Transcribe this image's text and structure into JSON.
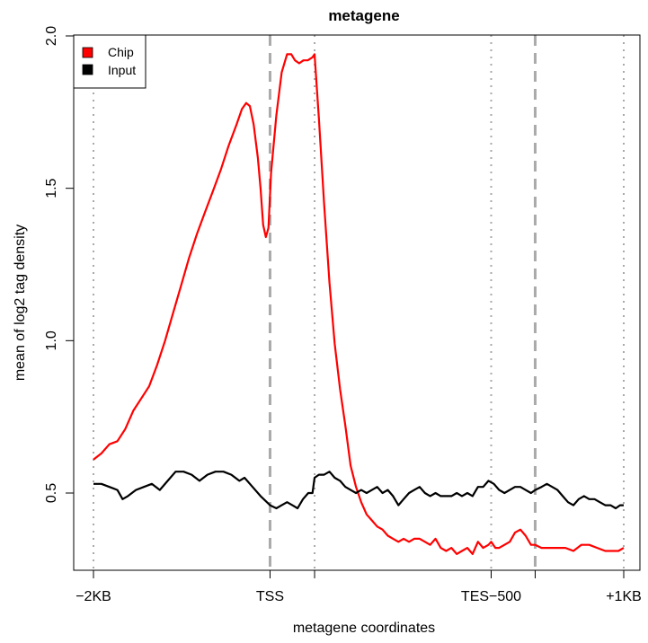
{
  "chart_data": {
    "type": "line",
    "title": "metagene",
    "xlabel": "metagene coordinates",
    "ylabel": "mean of log2 tag density",
    "xlim": [
      0,
      100
    ],
    "ylim": [
      0.25,
      2.0
    ],
    "yticks": [
      0.5,
      1.0,
      1.5,
      2.0
    ],
    "ytick_labels": [
      "0.5",
      "1.0",
      "1.5",
      "2.0"
    ],
    "xticks": [
      {
        "x": 0,
        "label": "−2KB"
      },
      {
        "x": 33.3,
        "label": "TSS"
      },
      {
        "x": 41.7,
        "label": ""
      },
      {
        "x": 75,
        "label": "TES−500"
      },
      {
        "x": 83.3,
        "label": ""
      },
      {
        "x": 100,
        "label": "+1KB"
      }
    ],
    "vlines": [
      {
        "x": 0,
        "style": "dotted"
      },
      {
        "x": 33.3,
        "style": "dashed"
      },
      {
        "x": 41.7,
        "style": "dotted"
      },
      {
        "x": 75,
        "style": "dotted"
      },
      {
        "x": 83.3,
        "style": "dashed"
      },
      {
        "x": 100,
        "style": "dotted"
      }
    ],
    "grid": false,
    "legend_position": "top-left",
    "series": [
      {
        "name": "Chip",
        "color": "#ff0000",
        "points": [
          [
            0,
            0.61
          ],
          [
            1.5,
            0.63
          ],
          [
            3,
            0.66
          ],
          [
            4.5,
            0.67
          ],
          [
            6,
            0.71
          ],
          [
            7.5,
            0.77
          ],
          [
            9,
            0.81
          ],
          [
            10.5,
            0.85
          ],
          [
            12,
            0.92
          ],
          [
            13.5,
            1.0
          ],
          [
            15,
            1.09
          ],
          [
            16.5,
            1.18
          ],
          [
            18,
            1.27
          ],
          [
            19.5,
            1.35
          ],
          [
            21,
            1.42
          ],
          [
            22.5,
            1.49
          ],
          [
            24,
            1.56
          ],
          [
            25.5,
            1.64
          ],
          [
            27,
            1.71
          ],
          [
            28,
            1.76
          ],
          [
            28.8,
            1.78
          ],
          [
            29.5,
            1.77
          ],
          [
            30.2,
            1.71
          ],
          [
            31,
            1.6
          ],
          [
            31.5,
            1.5
          ],
          [
            32,
            1.38
          ],
          [
            32.5,
            1.34
          ],
          [
            33,
            1.37
          ],
          [
            33.5,
            1.55
          ],
          [
            34.5,
            1.74
          ],
          [
            35.5,
            1.88
          ],
          [
            36.5,
            1.94
          ],
          [
            37.3,
            1.94
          ],
          [
            38,
            1.92
          ],
          [
            38.8,
            1.91
          ],
          [
            39.6,
            1.92
          ],
          [
            40.4,
            1.92
          ],
          [
            41.3,
            1.93
          ],
          [
            41.7,
            1.94
          ],
          [
            42.5,
            1.73
          ],
          [
            43.5,
            1.45
          ],
          [
            44.5,
            1.19
          ],
          [
            45.5,
            0.99
          ],
          [
            46.5,
            0.84
          ],
          [
            47.5,
            0.72
          ],
          [
            48.5,
            0.59
          ],
          [
            49.5,
            0.52
          ],
          [
            50.5,
            0.47
          ],
          [
            51.5,
            0.43
          ],
          [
            52.5,
            0.41
          ],
          [
            53.5,
            0.39
          ],
          [
            54.5,
            0.38
          ],
          [
            55.5,
            0.36
          ],
          [
            56.5,
            0.35
          ],
          [
            57.5,
            0.34
          ],
          [
            58.5,
            0.35
          ],
          [
            59.5,
            0.34
          ],
          [
            60.5,
            0.35
          ],
          [
            61.5,
            0.35
          ],
          [
            62.5,
            0.34
          ],
          [
            63.5,
            0.33
          ],
          [
            64.5,
            0.35
          ],
          [
            65.5,
            0.32
          ],
          [
            66.5,
            0.31
          ],
          [
            67.5,
            0.32
          ],
          [
            68.5,
            0.3
          ],
          [
            69.5,
            0.31
          ],
          [
            70.5,
            0.32
          ],
          [
            71.5,
            0.3
          ],
          [
            72.5,
            0.34
          ],
          [
            73.5,
            0.32
          ],
          [
            74.5,
            0.33
          ],
          [
            75,
            0.34
          ],
          [
            75.8,
            0.32
          ],
          [
            76.5,
            0.32
          ],
          [
            77.5,
            0.33
          ],
          [
            78.5,
            0.34
          ],
          [
            79.5,
            0.37
          ],
          [
            80.5,
            0.38
          ],
          [
            81.5,
            0.36
          ],
          [
            82.5,
            0.33
          ],
          [
            83.3,
            0.33
          ],
          [
            84.5,
            0.32
          ],
          [
            86,
            0.32
          ],
          [
            87.5,
            0.32
          ],
          [
            89,
            0.32
          ],
          [
            90.5,
            0.31
          ],
          [
            92,
            0.33
          ],
          [
            93.5,
            0.33
          ],
          [
            95,
            0.32
          ],
          [
            96.5,
            0.31
          ],
          [
            98,
            0.31
          ],
          [
            99,
            0.31
          ],
          [
            100,
            0.32
          ]
        ]
      },
      {
        "name": "Input",
        "color": "#000000",
        "points": [
          [
            0,
            0.53
          ],
          [
            1.5,
            0.53
          ],
          [
            3,
            0.52
          ],
          [
            4.5,
            0.51
          ],
          [
            5.5,
            0.48
          ],
          [
            6.5,
            0.49
          ],
          [
            8,
            0.51
          ],
          [
            9.5,
            0.52
          ],
          [
            11,
            0.53
          ],
          [
            12.5,
            0.51
          ],
          [
            14,
            0.54
          ],
          [
            15.5,
            0.57
          ],
          [
            17,
            0.57
          ],
          [
            18.5,
            0.56
          ],
          [
            20,
            0.54
          ],
          [
            21.5,
            0.56
          ],
          [
            23,
            0.57
          ],
          [
            24.5,
            0.57
          ],
          [
            26,
            0.56
          ],
          [
            27.5,
            0.54
          ],
          [
            28.5,
            0.55
          ],
          [
            30,
            0.52
          ],
          [
            31.5,
            0.49
          ],
          [
            33.3,
            0.46
          ],
          [
            34.5,
            0.45
          ],
          [
            35.5,
            0.46
          ],
          [
            36.5,
            0.47
          ],
          [
            37.5,
            0.46
          ],
          [
            38.5,
            0.45
          ],
          [
            39.5,
            0.48
          ],
          [
            40.5,
            0.5
          ],
          [
            41.3,
            0.5
          ],
          [
            41.7,
            0.55
          ],
          [
            42.5,
            0.56
          ],
          [
            43.5,
            0.56
          ],
          [
            44.5,
            0.57
          ],
          [
            45.5,
            0.55
          ],
          [
            46.5,
            0.54
          ],
          [
            47.5,
            0.52
          ],
          [
            48.5,
            0.51
          ],
          [
            49.5,
            0.5
          ],
          [
            50.5,
            0.51
          ],
          [
            51.5,
            0.5
          ],
          [
            52.5,
            0.51
          ],
          [
            53.5,
            0.52
          ],
          [
            54.5,
            0.5
          ],
          [
            55.5,
            0.51
          ],
          [
            56.5,
            0.49
          ],
          [
            57.5,
            0.46
          ],
          [
            58.5,
            0.48
          ],
          [
            59.5,
            0.5
          ],
          [
            60.5,
            0.51
          ],
          [
            61.5,
            0.52
          ],
          [
            62.5,
            0.5
          ],
          [
            63.5,
            0.49
          ],
          [
            64.5,
            0.5
          ],
          [
            65.5,
            0.49
          ],
          [
            66.5,
            0.49
          ],
          [
            67.5,
            0.49
          ],
          [
            68.5,
            0.5
          ],
          [
            69.5,
            0.49
          ],
          [
            70.5,
            0.5
          ],
          [
            71.5,
            0.49
          ],
          [
            72.5,
            0.52
          ],
          [
            73.5,
            0.52
          ],
          [
            74.5,
            0.54
          ],
          [
            75.5,
            0.53
          ],
          [
            76.5,
            0.51
          ],
          [
            77.5,
            0.5
          ],
          [
            78.5,
            0.51
          ],
          [
            79.5,
            0.52
          ],
          [
            80.5,
            0.52
          ],
          [
            81.5,
            0.51
          ],
          [
            82.5,
            0.5
          ],
          [
            83.3,
            0.51
          ],
          [
            84.5,
            0.52
          ],
          [
            85.5,
            0.53
          ],
          [
            86.5,
            0.52
          ],
          [
            87.5,
            0.51
          ],
          [
            88.5,
            0.49
          ],
          [
            89.5,
            0.47
          ],
          [
            90.5,
            0.46
          ],
          [
            91.5,
            0.48
          ],
          [
            92.5,
            0.49
          ],
          [
            93.5,
            0.48
          ],
          [
            94.5,
            0.48
          ],
          [
            95.5,
            0.47
          ],
          [
            96.5,
            0.46
          ],
          [
            97.5,
            0.46
          ],
          [
            98.5,
            0.45
          ],
          [
            99.3,
            0.46
          ],
          [
            100,
            0.46
          ]
        ]
      }
    ]
  }
}
